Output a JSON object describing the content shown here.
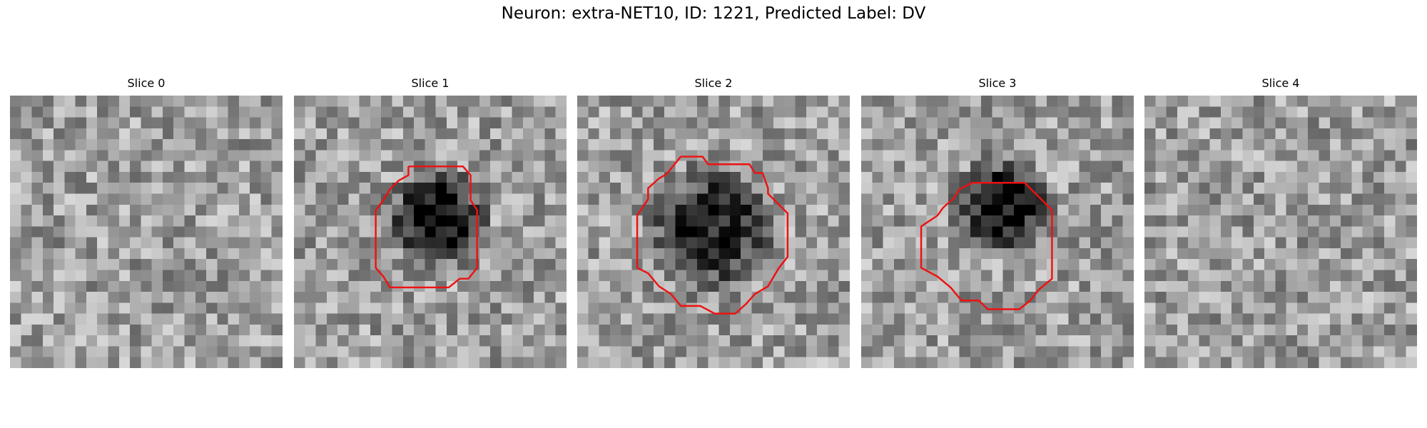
{
  "figure": {
    "title": "Neuron: extra-NET10, ID: 1221, Predicted Label: DV"
  },
  "colors": {
    "background": "#ffffff",
    "contour": "#ee1111"
  },
  "grid_size": 25,
  "slices": [
    {
      "title": "Slice 0",
      "seed": 11,
      "blob": null,
      "contour": []
    },
    {
      "title": "Slice 1",
      "seed": 23,
      "blob": {
        "cx": 13.2,
        "cy": 11.2,
        "r": 5.4,
        "depth": 0.55
      },
      "contour": [
        [
          10.5,
          6.5
        ],
        [
          15.5,
          6.5
        ],
        [
          16.2,
          7.3
        ],
        [
          16.2,
          9.6
        ],
        [
          16.8,
          10.5
        ],
        [
          16.8,
          15.8
        ],
        [
          16.0,
          16.8
        ],
        [
          15.2,
          16.8
        ],
        [
          14.2,
          17.6
        ],
        [
          8.8,
          17.6
        ],
        [
          8.2,
          16.6
        ],
        [
          7.5,
          15.8
        ],
        [
          7.5,
          10.5
        ],
        [
          8.2,
          9.6
        ],
        [
          8.8,
          8.6
        ],
        [
          9.6,
          7.8
        ],
        [
          10.5,
          7.3
        ],
        [
          10.5,
          6.5
        ]
      ]
    },
    {
      "title": "Slice 2",
      "seed": 37,
      "blob": {
        "cx": 12.3,
        "cy": 12.3,
        "r": 6.8,
        "depth": 0.5
      },
      "contour": [
        [
          9.5,
          5.6
        ],
        [
          11.5,
          5.6
        ],
        [
          12.0,
          6.3
        ],
        [
          15.8,
          6.3
        ],
        [
          16.3,
          7.1
        ],
        [
          17.0,
          7.1
        ],
        [
          17.5,
          8.5
        ],
        [
          17.5,
          9.0
        ],
        [
          19.3,
          10.8
        ],
        [
          19.3,
          14.8
        ],
        [
          18.5,
          15.8
        ],
        [
          17.5,
          17.5
        ],
        [
          16.3,
          18.2
        ],
        [
          15.5,
          19.1
        ],
        [
          14.5,
          20.0
        ],
        [
          12.6,
          20.0
        ],
        [
          11.3,
          19.3
        ],
        [
          9.5,
          19.3
        ],
        [
          8.6,
          18.2
        ],
        [
          7.5,
          17.5
        ],
        [
          6.5,
          16.3
        ],
        [
          5.5,
          15.8
        ],
        [
          5.5,
          11.0
        ],
        [
          6.5,
          9.5
        ],
        [
          6.5,
          8.5
        ],
        [
          7.5,
          7.6
        ],
        [
          8.2,
          7.2
        ],
        [
          9.5,
          5.6
        ]
      ]
    },
    {
      "title": "Slice 3",
      "seed": 53,
      "blob": {
        "cx": 13.0,
        "cy": 10.2,
        "r": 5.2,
        "depth": 0.58
      },
      "contour": [
        [
          7.0,
          11.0
        ],
        [
          7.5,
          10.3
        ],
        [
          8.5,
          9.4
        ],
        [
          9.0,
          8.6
        ],
        [
          10.2,
          8.0
        ],
        [
          15.0,
          8.0
        ],
        [
          16.3,
          9.3
        ],
        [
          17.5,
          10.5
        ],
        [
          17.5,
          16.8
        ],
        [
          16.3,
          17.8
        ],
        [
          15.5,
          18.8
        ],
        [
          14.5,
          19.6
        ],
        [
          11.6,
          19.6
        ],
        [
          10.8,
          18.8
        ],
        [
          9.2,
          18.8
        ],
        [
          8.2,
          17.6
        ],
        [
          7.0,
          16.6
        ],
        [
          5.5,
          15.8
        ],
        [
          5.5,
          12.0
        ],
        [
          7.0,
          11.0
        ]
      ]
    },
    {
      "title": "Slice 4",
      "seed": 71,
      "blob": null,
      "contour": []
    }
  ]
}
